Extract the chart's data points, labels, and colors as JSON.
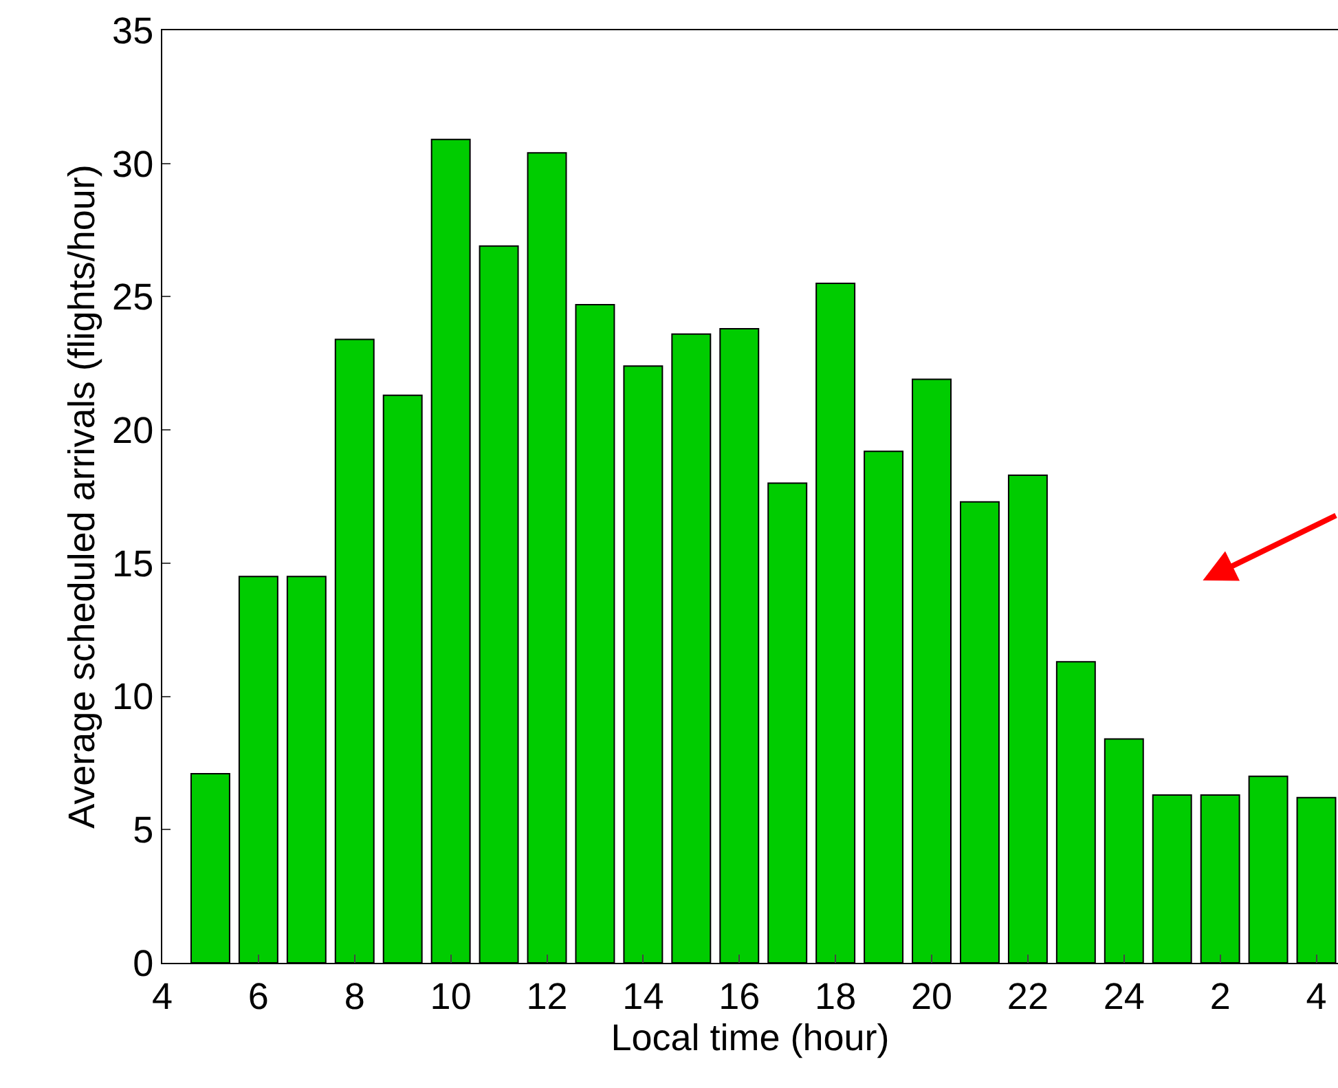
{
  "chart_data": {
    "type": "bar",
    "xlabel": "Local time (hour)",
    "ylabel": "Average scheduled arrivals (flights/hour)",
    "x": [
      "--01-01T05:00",
      "--01-01T06:00",
      "--01-01T07:00",
      "--01-01T08:00",
      "--01-01T09:00",
      "--01-01T10:00",
      "--01-01T11:00",
      "--01-01T12:00",
      "--01-01T13:00",
      "--01-01T14:00",
      "--01-01T15:00",
      "--01-01T16:00",
      "--01-01T17:00",
      "--01-01T18:00",
      "--01-01T19:00",
      "--01-01T20:00",
      "--01-01T21:00",
      "--01-01T22:00",
      "--01-01T23:00",
      "--01-02T00:00",
      "--01-02T01:00",
      "--01-02T02:00",
      "--01-02T03:00",
      "--01-02T04:00"
    ],
    "values": [
      7.1,
      14.5,
      14.5,
      23.4,
      21.3,
      30.9,
      26.9,
      30.4,
      24.7,
      22.4,
      23.6,
      23.8,
      18.0,
      25.5,
      19.2,
      21.9,
      17.3,
      18.3,
      11.3,
      8.4,
      6.3,
      6.3,
      7.0,
      6.2
    ],
    "color": "#00cc00",
    "xlim": [
      "--01-01T04:00",
      "--01-02T04:27"
    ],
    "xticks": [
      {
        "value": "--01-01T04:00",
        "label": "4"
      },
      {
        "value": "--01-01T06:00",
        "label": "6"
      },
      {
        "value": "--01-01T08:00",
        "label": "8"
      },
      {
        "value": "--01-01T10:00",
        "label": "10"
      },
      {
        "value": "--01-01T12:00",
        "label": "12"
      },
      {
        "value": "--01-01T14:00",
        "label": "14"
      },
      {
        "value": "--01-01T16:00",
        "label": "16"
      },
      {
        "value": "--01-01T18:00",
        "label": "18"
      },
      {
        "value": "--01-01T20:00",
        "label": "20"
      },
      {
        "value": "--01-01T22:00",
        "label": "22"
      },
      {
        "value": "--01-02T00:00",
        "label": "24"
      },
      {
        "value": "--01-02T02:00",
        "label": "2"
      },
      {
        "value": "--01-02T04:00",
        "label": "4"
      }
    ],
    "ylim": [
      0,
      35
    ],
    "yticks": [
      0,
      5,
      10,
      15,
      20,
      25,
      30,
      35
    ]
  }
}
